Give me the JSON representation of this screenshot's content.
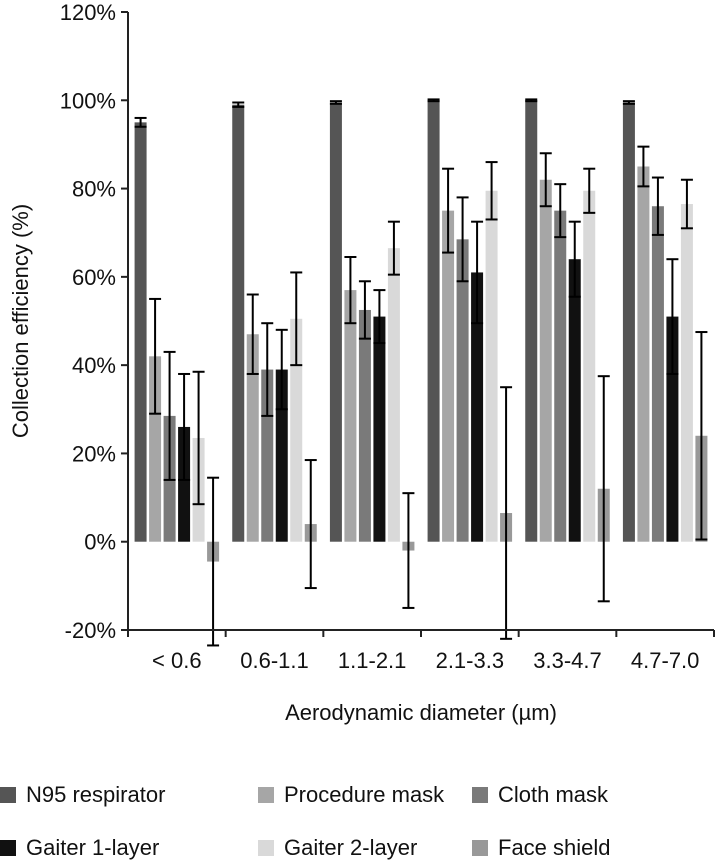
{
  "chart_data": {
    "type": "bar",
    "xlabel": "Aerodynamic diameter (µm)",
    "ylabel": "Collection efficiency (%)",
    "ylim": [
      -20,
      120
    ],
    "yticks": [
      -20,
      0,
      20,
      40,
      60,
      80,
      100,
      120
    ],
    "ytick_labels": [
      "-20%",
      "0%",
      "20%",
      "40%",
      "60%",
      "80%",
      "100%",
      "120%"
    ],
    "categories": [
      "< 0.6",
      "0.6-1.1",
      "1.1-2.1",
      "2.1-3.3",
      "3.3-4.7",
      "4.7-7.0"
    ],
    "legend_position": "bottom",
    "grid": false,
    "series": [
      {
        "name": "N95 respirator",
        "color": "#555555",
        "values": [
          95,
          99,
          99.5,
          100,
          100,
          99.5
        ],
        "errors": [
          1,
          0.5,
          0.3,
          0.2,
          0.2,
          0.3
        ]
      },
      {
        "name": "Procedure mask",
        "color": "#a6a6a6",
        "values": [
          42,
          47,
          57,
          75,
          82,
          85
        ],
        "errors": [
          13,
          9,
          7.5,
          9.5,
          6,
          4.5
        ]
      },
      {
        "name": "Cloth mask",
        "color": "#7a7a7a",
        "values": [
          28.5,
          39,
          52.5,
          68.5,
          75,
          76
        ],
        "errors": [
          14.5,
          10.5,
          6.5,
          9.5,
          6,
          6.5
        ]
      },
      {
        "name": "Gaiter 1-layer",
        "color": "#111111",
        "values": [
          26,
          39,
          51,
          61,
          64,
          51
        ],
        "errors": [
          12,
          9,
          6,
          11.5,
          8.5,
          13
        ]
      },
      {
        "name": "Gaiter 2-layer",
        "color": "#d9d9d9",
        "values": [
          23.5,
          50.5,
          66.5,
          79.5,
          79.5,
          76.5
        ],
        "errors": [
          15,
          10.5,
          6,
          6.5,
          5,
          5.5
        ]
      },
      {
        "name": "Face shield",
        "color": "#999999",
        "values": [
          -4.5,
          4,
          -2,
          6.5,
          12,
          24
        ],
        "errors": [
          19,
          14.5,
          13,
          28.5,
          25.5,
          23.5
        ]
      }
    ]
  }
}
